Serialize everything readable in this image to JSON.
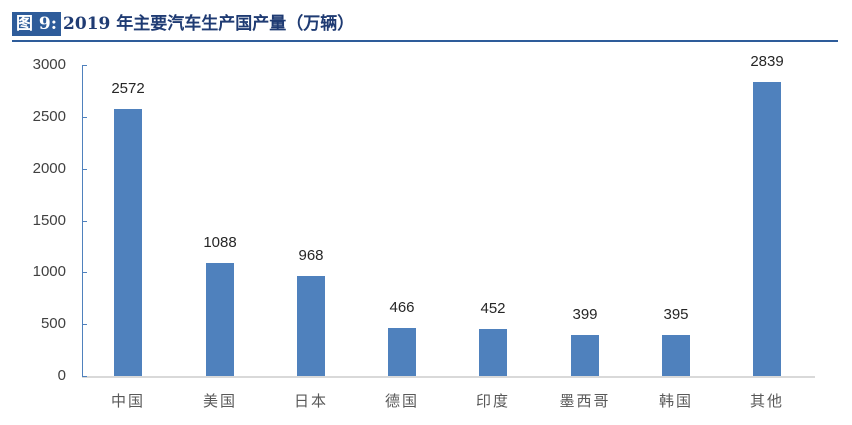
{
  "title": {
    "tag": "图 9:",
    "text": "2019 年主要汽车生产国产量（万辆）"
  },
  "colors": {
    "bar": "#4F81BD",
    "title_tag_bg": "#2E5C9A",
    "title_text": "#1F3B73"
  },
  "chart_data": {
    "type": "bar",
    "title": "2019 年主要汽车生产国产量（万辆）",
    "xlabel": "",
    "ylabel": "",
    "ylim": [
      0,
      3000
    ],
    "yticks": [
      "0",
      "500",
      "1000",
      "1500",
      "2000",
      "2500",
      "3000"
    ],
    "grid": false,
    "legend": null,
    "categories": [
      "中国",
      "美国",
      "日本",
      "德国",
      "印度",
      "墨西哥",
      "韩国",
      "其他"
    ],
    "values": [
      2572,
      1088,
      968,
      466,
      452,
      399,
      395,
      2839
    ],
    "value_labels": [
      "2572",
      "1088",
      "968",
      "466",
      "452",
      "399",
      "395",
      "2839"
    ]
  }
}
